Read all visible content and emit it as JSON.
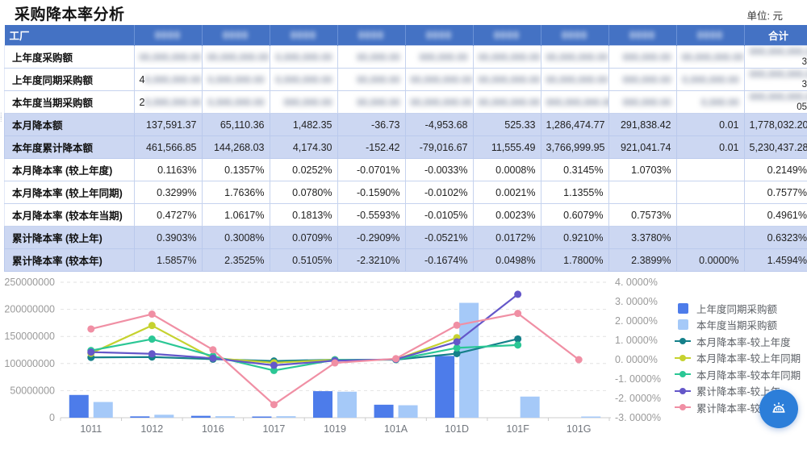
{
  "page": {
    "title": "采购降本率分析",
    "unit_label": "单位: 元"
  },
  "table": {
    "header": {
      "factory_label": "工厂",
      "total_label": "合计",
      "masked_column_count": 9,
      "masked_header_placeholder": "0000"
    },
    "rows": [
      {
        "label": "上年度采购额",
        "masked": true,
        "prefix": "",
        "mask_cells": [
          "00,000,000.00",
          "00,000,000.00",
          "0,000,000.00",
          "00,000.00",
          "000,000.00",
          "00,000,000.00",
          "00,000,000.00",
          "000,000.00",
          "00,000,000.00"
        ],
        "total_mask": "000,000,000,00",
        "total_clear_line1": "6.",
        "total_clear_line2": "3"
      },
      {
        "label": "上年度同期采购额",
        "masked": true,
        "prefix": "4",
        "mask_cells": [
          "0,000,000.00",
          "0,000,000.00",
          "0,000,000.00",
          "00,000.00",
          "00,000,000.00",
          "00,000,000.00",
          "00,000,000.00",
          "000,000.00",
          "0,000,000.00"
        ],
        "total_mask": "000,000,000,00",
        "total_clear_line1": "5.",
        "total_clear_line2": "3"
      },
      {
        "label": "本年度当期采购额",
        "masked": true,
        "prefix": "2",
        "mask_cells": [
          "0,000,000.00",
          "0,000,000.00",
          "000,000.00",
          "00,000.00",
          "00,000,000.00",
          "00,000,000.00",
          "000,000,000.00",
          "000,000.00",
          "0,000.00"
        ],
        "total_mask": "000,000,000,00",
        "total_clear_line1": "1.",
        "total_clear_line2": "05"
      },
      {
        "label": "本月降本额",
        "highlight": true,
        "values": [
          "137,591.37",
          "65,110.36",
          "1,482.35",
          "-36.73",
          "-4,953.68",
          "525.33",
          "1,286,474.77",
          "291,838.42",
          "0.01",
          "1,778,032.20"
        ]
      },
      {
        "label": "本年度累计降本额",
        "highlight": true,
        "values": [
          "461,566.85",
          "144,268.03",
          "4,174.30",
          "-152.42",
          "-79,016.67",
          "11,555.49",
          "3,766,999.95",
          "921,041.74",
          "0.01",
          "5,230,437.28"
        ]
      },
      {
        "label": "本月降本率 (较上年度)",
        "values": [
          "0.1163%",
          "0.1357%",
          "0.0252%",
          "-0.0701%",
          "-0.0033%",
          "0.0008%",
          "0.3145%",
          "1.0703%",
          "",
          "0.2149%"
        ]
      },
      {
        "label": "本月降本率 (较上年同期)",
        "values": [
          "0.3299%",
          "1.7636%",
          "0.0780%",
          "-0.1590%",
          "-0.0102%",
          "0.0021%",
          "1.1355%",
          "",
          "",
          "0.7577%"
        ]
      },
      {
        "label": "本月降本率 (较本年当期)",
        "values": [
          "0.4727%",
          "1.0617%",
          "0.1813%",
          "-0.5593%",
          "-0.0105%",
          "0.0023%",
          "0.6079%",
          "0.7573%",
          "",
          "0.4961%"
        ]
      },
      {
        "label": "累计降本率 (较上年)",
        "highlight": true,
        "values": [
          "0.3903%",
          "0.3008%",
          "0.0709%",
          "-0.2909%",
          "-0.0521%",
          "0.0172%",
          "0.9210%",
          "3.3780%",
          "",
          "0.6323%"
        ]
      },
      {
        "label": "累计降本率 (较本年)",
        "highlight": true,
        "values": [
          "1.5857%",
          "2.3525%",
          "0.5105%",
          "-2.3210%",
          "-0.1674%",
          "0.0498%",
          "1.7800%",
          "2.3899%",
          "0.0000%",
          "1.4594%"
        ]
      }
    ]
  },
  "chart_data": {
    "type": "bar+line",
    "categories": [
      "1011",
      "1012",
      "1016",
      "1017",
      "1019",
      "101A",
      "101D",
      "101F",
      "101G"
    ],
    "bar_series": [
      {
        "name": "上年度同期采购额",
        "color": "#4d7cea",
        "values": [
          42000000,
          2500000,
          3500000,
          1200000,
          49000000,
          24000000,
          114000000,
          0,
          0
        ]
      },
      {
        "name": "本年度当期采购额",
        "color": "#a5c9f8",
        "values": [
          29000000,
          5500000,
          2800000,
          2800000,
          48000000,
          23000000,
          212000000,
          39000000,
          2000000
        ]
      }
    ],
    "line_series": [
      {
        "name": "本月降本率-较上年度",
        "color": "#15808a",
        "values": [
          0.1163,
          0.1357,
          0.0252,
          -0.0701,
          -0.0033,
          0.0008,
          0.3145,
          1.0703,
          null
        ]
      },
      {
        "name": "本月降本率-较上年同期",
        "color": "#c6d22f",
        "values": [
          0.3299,
          1.7636,
          0.078,
          -0.159,
          -0.0102,
          0.0021,
          1.1355,
          null,
          null
        ]
      },
      {
        "name": "本月降本率-较本年同期",
        "color": "#2bc795",
        "values": [
          0.4727,
          1.0617,
          0.1813,
          -0.5593,
          -0.0105,
          0.0023,
          0.6079,
          0.7573,
          null
        ]
      },
      {
        "name": "累计降本率-较上年",
        "color": "#6457c9",
        "values": [
          0.3903,
          0.3008,
          0.0709,
          -0.2909,
          -0.0521,
          0.0172,
          0.921,
          3.378,
          null
        ]
      },
      {
        "name": "累计降本率-较本年",
        "color": "#f08fa4",
        "values": [
          1.5857,
          2.3525,
          0.5105,
          -2.321,
          -0.1674,
          0.0498,
          1.78,
          2.3899,
          0.0
        ]
      }
    ],
    "left_axis": {
      "min": 0,
      "max": 250000000,
      "tick_labels": [
        "0",
        "50000000",
        "100000000",
        "150000000",
        "200000000",
        "250000000"
      ]
    },
    "right_axis": {
      "min": -3,
      "max": 4,
      "tick_labels": [
        "-3. 0000%",
        "-2. 0000%",
        "-1. 0000%",
        "0. 0000%",
        "1. 0000%",
        "2. 0000%",
        "3. 0000%",
        "4. 0000%"
      ]
    },
    "grid": "dashed-horizontal",
    "legend_position": "right",
    "legend": [
      {
        "label": "上年度同期采购额",
        "type": "bar",
        "color": "#4d7cea"
      },
      {
        "label": "本年度当期采购额",
        "type": "bar",
        "color": "#a5c9f8"
      },
      {
        "label": "本月降本率-较上年度",
        "type": "line",
        "color": "#15808a"
      },
      {
        "label": "本月降本率-较上年同期",
        "type": "line",
        "color": "#c6d22f"
      },
      {
        "label": "本月降本率-较本年同期",
        "type": "line",
        "color": "#2bc795"
      },
      {
        "label": "累计降本率-较上年",
        "type": "line",
        "color": "#6457c9"
      },
      {
        "label": "累计降本率-较本年",
        "type": "line",
        "color": "#f08fa4"
      }
    ]
  },
  "fab": {
    "icon": "alarm-siren"
  }
}
